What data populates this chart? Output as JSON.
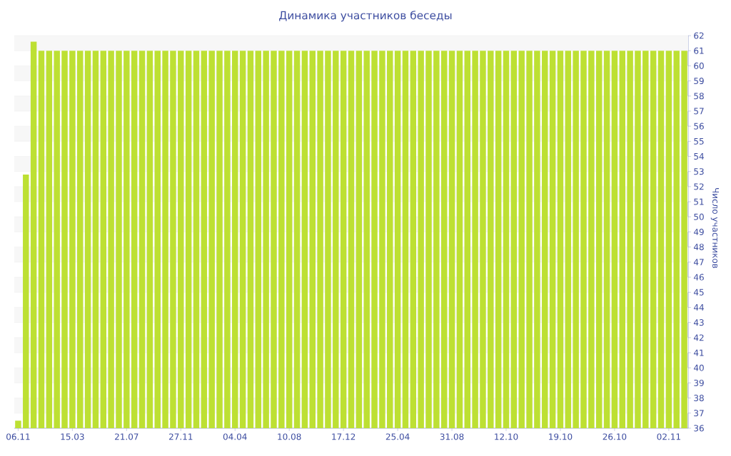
{
  "chart_data": {
    "type": "bar",
    "title": "Динамика участников беседы",
    "ylabel": "Число участников",
    "categories": [
      "06.11",
      null,
      null,
      null,
      null,
      null,
      null,
      "15.03",
      null,
      null,
      null,
      null,
      null,
      null,
      "21.07",
      null,
      null,
      null,
      null,
      null,
      null,
      "27.11",
      null,
      null,
      null,
      null,
      null,
      null,
      "04.04",
      null,
      null,
      null,
      null,
      null,
      null,
      "10.08",
      null,
      null,
      null,
      null,
      null,
      null,
      "17.12",
      null,
      null,
      null,
      null,
      null,
      null,
      "25.04",
      null,
      null,
      null,
      null,
      null,
      null,
      "31.08",
      null,
      null,
      null,
      null,
      null,
      null,
      "12.10",
      null,
      null,
      null,
      null,
      null,
      null,
      "19.10",
      null,
      null,
      null,
      null,
      null,
      null,
      "26.10",
      null,
      null,
      null,
      null,
      null,
      null,
      "02.11",
      null,
      null
    ],
    "values": [
      36.5,
      52.8,
      61.6,
      61,
      61,
      61,
      61,
      61,
      61,
      61,
      61,
      61,
      61,
      61,
      61,
      61,
      61,
      61,
      61,
      61,
      61,
      61,
      61,
      61,
      61,
      61,
      61,
      61,
      61,
      61,
      61,
      61,
      61,
      61,
      61,
      61,
      61,
      61,
      61,
      61,
      61,
      61,
      61,
      61,
      61,
      61,
      61,
      61,
      61,
      61,
      61,
      61,
      61,
      61,
      61,
      61,
      61,
      61,
      61,
      61,
      61,
      61,
      61,
      61,
      61,
      61,
      61,
      61,
      61,
      61,
      61,
      61,
      61,
      61,
      61,
      61,
      61,
      61,
      61,
      61,
      61,
      61,
      61,
      61,
      61,
      61,
      61
    ],
    "color": "#bde033",
    "ylim": [
      36,
      62
    ],
    "yticks": [
      36,
      37,
      38,
      39,
      40,
      41,
      42,
      43,
      44,
      45,
      46,
      47,
      48,
      49,
      50,
      51,
      52,
      53,
      54,
      55,
      56,
      57,
      58,
      59,
      60,
      61,
      62
    ],
    "grid": "y"
  }
}
